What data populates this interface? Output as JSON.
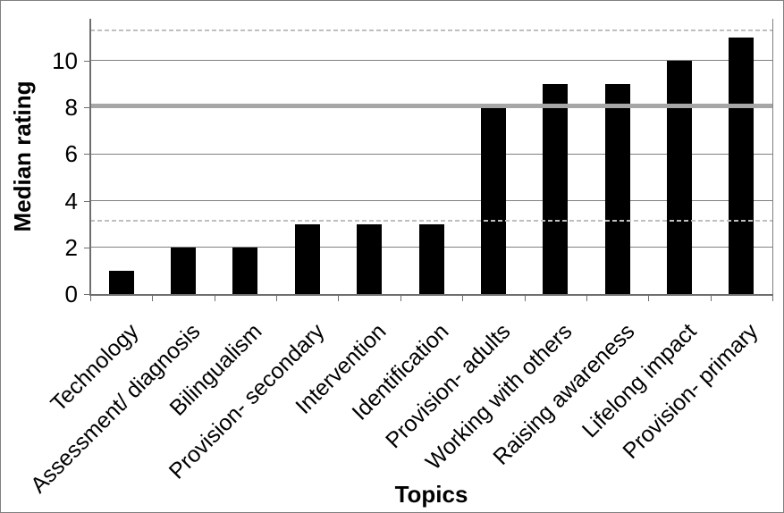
{
  "chart_data": {
    "type": "bar",
    "title": "",
    "xlabel": "Topics",
    "ylabel": "Median rating",
    "categories": [
      "Technology",
      "Assessment/ diagnosis",
      "Bilingualism",
      "Provision- secondary",
      "Intervention",
      "Identification",
      "Provision- adults",
      "Working with others",
      "Raising awareness",
      "Lifelong impact",
      "Provision- primary"
    ],
    "values": [
      1,
      2,
      2,
      3,
      3,
      3,
      8,
      9,
      9,
      10,
      11
    ],
    "yticks": [
      0,
      2,
      4,
      6,
      8,
      10
    ],
    "ylim": [
      0,
      11.8
    ],
    "grid": true,
    "legend": false,
    "bar_color": "#000000",
    "reference_lines": [
      {
        "name": "solid-median-reference-line",
        "style": "solid",
        "value": 8,
        "color": "#a6a6a6"
      },
      {
        "name": "upper-dashed-reference-line",
        "style": "dashed",
        "value": 11.3,
        "color": "#bfbfbf"
      },
      {
        "name": "lower-dashed-reference-line",
        "style": "dashed",
        "value": 3.15,
        "color": "#bfbfbf"
      }
    ],
    "colors": {
      "axis": "#6e6e6e",
      "gridline": "#808080",
      "tick": "#6e6e6e",
      "text": "#000000",
      "figure_border": "#7f7f7f",
      "background": "#ffffff"
    }
  }
}
